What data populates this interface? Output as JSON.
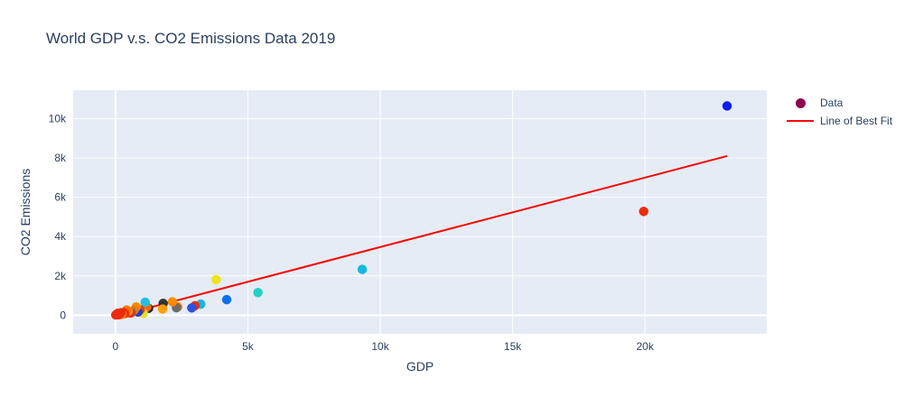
{
  "chart_data": {
    "type": "scatter",
    "title": "World GDP v.s. CO2 Emissions Data 2019",
    "xlabel": "GDP",
    "ylabel": "CO2 Emissions",
    "xlim": [
      -1600,
      24600
    ],
    "ylim": [
      -950,
      11450
    ],
    "x_ticks": [
      0,
      5000,
      10000,
      15000,
      20000
    ],
    "x_tick_labels": [
      "0",
      "5k",
      "10k",
      "15k",
      "20k"
    ],
    "y_ticks": [
      0,
      2000,
      4000,
      6000,
      8000,
      10000
    ],
    "y_tick_labels": [
      "0",
      "2k",
      "4k",
      "6k",
      "8k",
      "10k"
    ],
    "grid": true,
    "legend_position": "right",
    "series": [
      {
        "name": "Data",
        "mode": "markers",
        "legend_color": "#8e0152",
        "points": [
          {
            "x": 23100,
            "y": 10650,
            "color": "#0d1ef0"
          },
          {
            "x": 19950,
            "y": 5280,
            "color": "#ee2a0c"
          },
          {
            "x": 9320,
            "y": 2330,
            "color": "#16b9de"
          },
          {
            "x": 5380,
            "y": 1150,
            "color": "#24cfc3"
          },
          {
            "x": 4200,
            "y": 790,
            "color": "#0f72ea"
          },
          {
            "x": 3800,
            "y": 1810,
            "color": "#f3e317"
          },
          {
            "x": 3220,
            "y": 560,
            "color": "#1fb2dc"
          },
          {
            "x": 3000,
            "y": 480,
            "color": "#ee2a0c"
          },
          {
            "x": 2880,
            "y": 370,
            "color": "#2b52e0"
          },
          {
            "x": 2350,
            "y": 420,
            "color": "#ff7a00"
          },
          {
            "x": 2300,
            "y": 380,
            "color": "#6f6a6a"
          },
          {
            "x": 2150,
            "y": 680,
            "color": "#ff8c00"
          },
          {
            "x": 1800,
            "y": 600,
            "color": "#333333"
          },
          {
            "x": 1780,
            "y": 310,
            "color": "#ffa000"
          },
          {
            "x": 1250,
            "y": 350,
            "color": "#2a2a2a"
          },
          {
            "x": 1180,
            "y": 420,
            "color": "#ff6a00"
          },
          {
            "x": 1120,
            "y": 660,
            "color": "#22c0dd"
          },
          {
            "x": 1050,
            "y": 90,
            "color": "#e8e020"
          },
          {
            "x": 930,
            "y": 270,
            "color": "#ee3a10"
          },
          {
            "x": 850,
            "y": 160,
            "color": "#1f3fc9"
          },
          {
            "x": 780,
            "y": 420,
            "color": "#ff8a00"
          },
          {
            "x": 700,
            "y": 250,
            "color": "#ff7700"
          },
          {
            "x": 620,
            "y": 140,
            "color": "#7a7a7a"
          },
          {
            "x": 560,
            "y": 110,
            "color": "#ee2a0c"
          },
          {
            "x": 480,
            "y": 200,
            "color": "#ff9900"
          },
          {
            "x": 420,
            "y": 260,
            "color": "#ff7200"
          },
          {
            "x": 350,
            "y": 80,
            "color": "#ee2a0c"
          },
          {
            "x": 300,
            "y": 130,
            "color": "#ee2a0c"
          },
          {
            "x": 240,
            "y": 40,
            "color": "#ff8800"
          },
          {
            "x": 200,
            "y": 120,
            "color": "#ee2a0c"
          },
          {
            "x": 160,
            "y": 60,
            "color": "#ee2a0c"
          },
          {
            "x": 120,
            "y": 20,
            "color": "#ee2a0c"
          },
          {
            "x": 80,
            "y": 90,
            "color": "#ee2a0c"
          },
          {
            "x": 40,
            "y": 30,
            "color": "#ee2a0c"
          },
          {
            "x": 10,
            "y": 10,
            "color": "#ee2a0c"
          }
        ]
      },
      {
        "name": "Line of Best Fit",
        "mode": "lines",
        "color": "#ff0000",
        "x": [
          0,
          23100
        ],
        "y": [
          -70,
          8100
        ]
      }
    ]
  }
}
